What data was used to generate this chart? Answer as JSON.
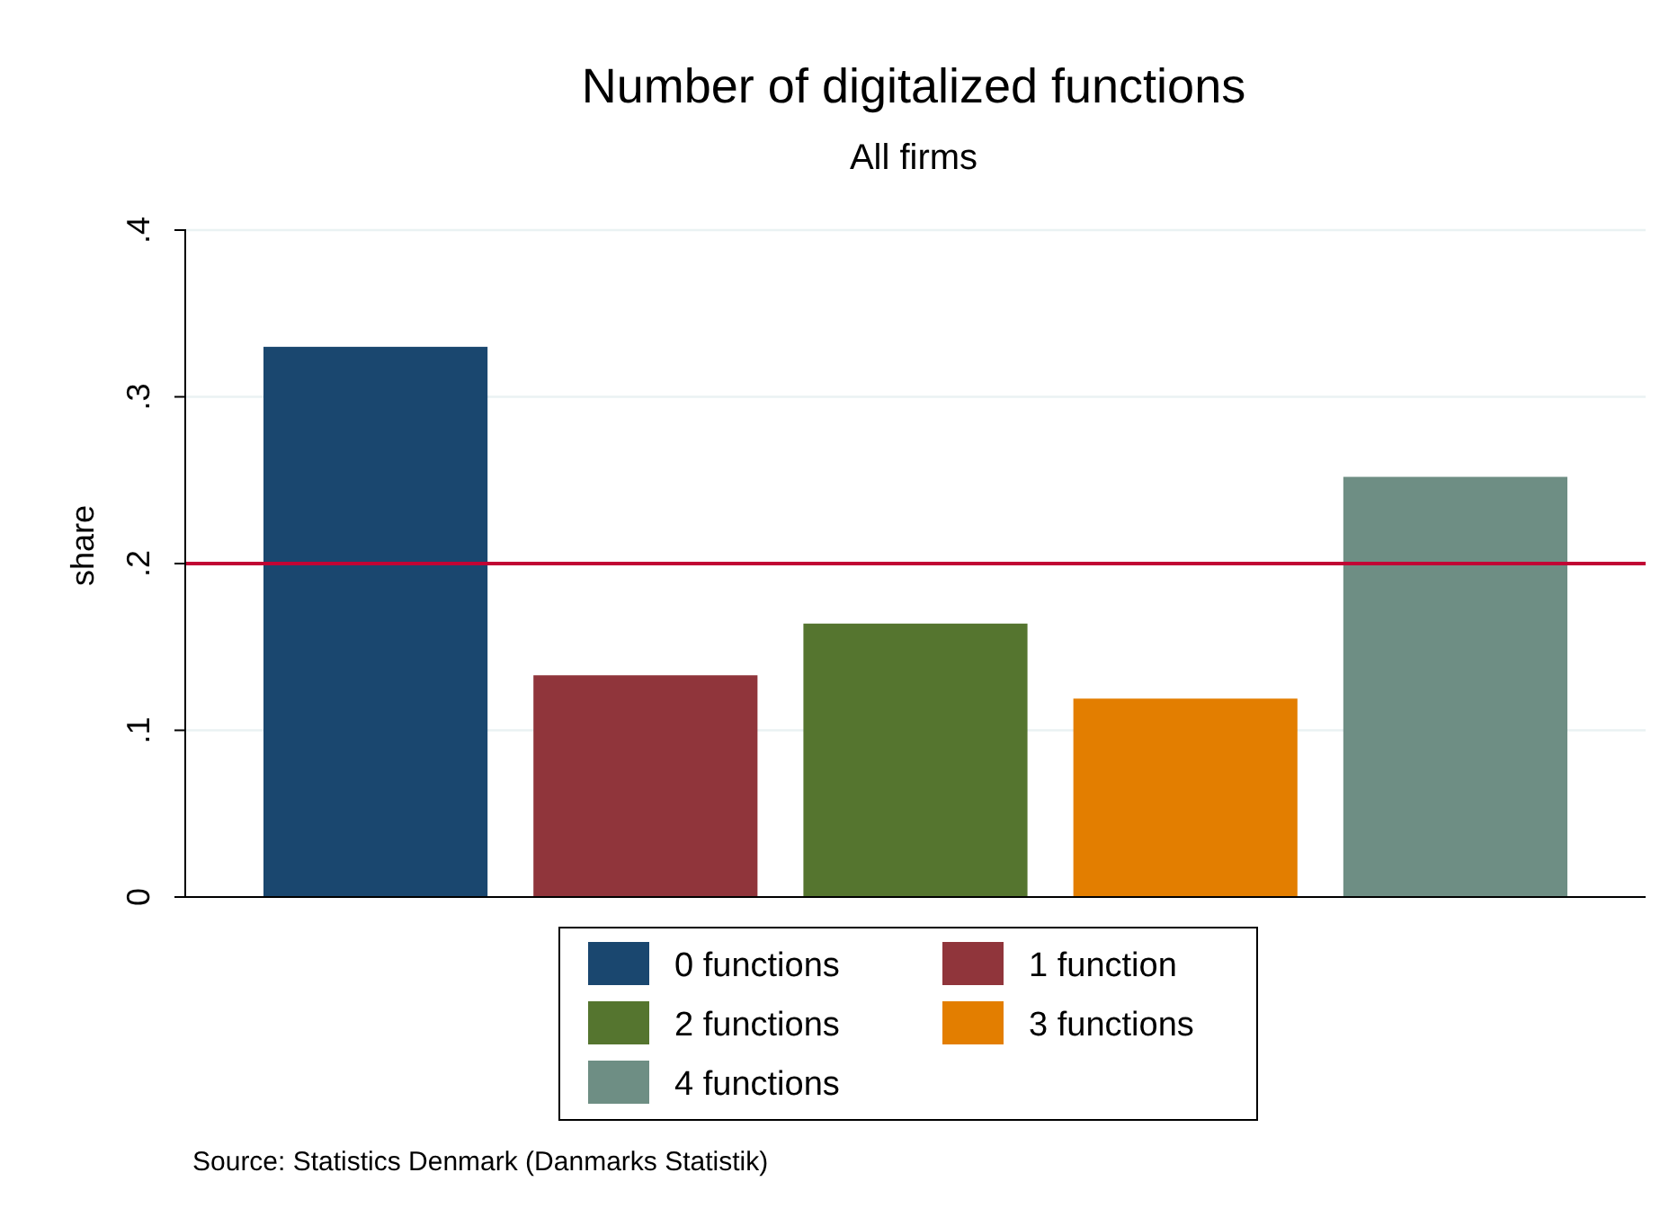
{
  "chart_data": {
    "type": "bar",
    "title": "Number of digitalized functions",
    "subtitle": "All firms",
    "ylabel": "share",
    "categories": [
      null
    ],
    "series": [
      {
        "name": "0 functions",
        "color": "#1a476f",
        "values": [
          0.33
        ]
      },
      {
        "name": "1 function",
        "color": "#90353b",
        "values": [
          0.133
        ]
      },
      {
        "name": "2 functions",
        "color": "#55752f",
        "values": [
          0.164
        ]
      },
      {
        "name": "3 functions",
        "color": "#e37e00",
        "values": [
          0.119
        ]
      },
      {
        "name": "4 functions",
        "color": "#6e8e84",
        "values": [
          0.252
        ]
      }
    ],
    "ylim": [
      0,
      0.4
    ],
    "yticks": [
      {
        "value": 0,
        "label": "0"
      },
      {
        "value": 0.1,
        "label": ".1"
      },
      {
        "value": 0.2,
        "label": ".2"
      },
      {
        "value": 0.3,
        "label": ".3"
      },
      {
        "value": 0.4,
        "label": ".4"
      }
    ],
    "grid": "y",
    "tick_labels": "y",
    "legend": "bottom",
    "ref_lines": [
      {
        "axis": "y",
        "value": 0.2,
        "color": "#c10534"
      }
    ],
    "annotations": [
      "Source: Statistics Denmark (Danmarks Statistik)"
    ]
  }
}
